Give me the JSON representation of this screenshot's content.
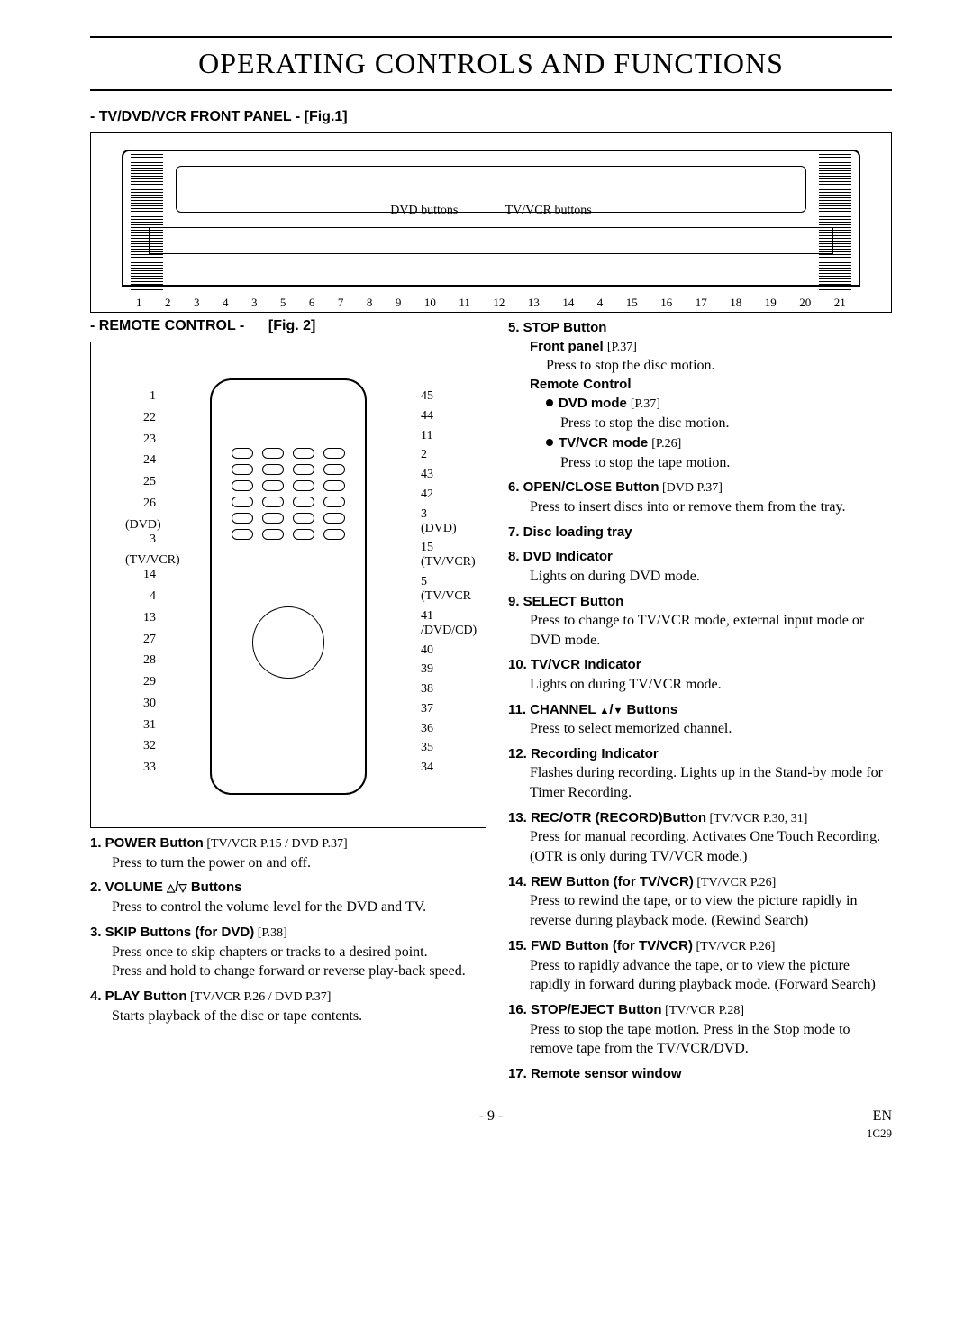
{
  "page_title": "OPERATING CONTROLS AND FUNCTIONS",
  "front_panel": {
    "heading": "- TV/DVD/VCR FRONT PANEL - [Fig.1]",
    "label_dvd": "DVD buttons",
    "label_tvvcr": "TV/VCR buttons",
    "callout_numbers": [
      "1",
      "2",
      "3",
      "4",
      "3",
      "5",
      "6",
      "7",
      "8",
      "9",
      "10",
      "11",
      "12",
      "13",
      "14",
      "4",
      "15",
      "16",
      "17",
      "18",
      "19",
      "20",
      "21"
    ]
  },
  "remote": {
    "heading": "- REMOTE CONTROL -      [Fig. 2]",
    "left_numbers": [
      "1",
      "22",
      "23",
      "24",
      "25",
      "26",
      "(DVD) 3",
      "(TV/VCR) 14",
      "4",
      "13",
      "27",
      "28",
      "29",
      "30",
      "31",
      "32",
      "33"
    ],
    "right_numbers": [
      "45",
      "44",
      "11",
      "2",
      "43",
      "42",
      "3 (DVD)",
      "15 (TV/VCR)",
      "5 (TV/VCR",
      "41 /DVD/CD)",
      "40",
      "39",
      "38",
      "37",
      "36",
      "35",
      "34"
    ]
  },
  "items_left": [
    {
      "num": "1.",
      "title": "POWER Button",
      "ref": "[TV/VCR P.15 / DVD P.37]",
      "lines": [
        "Press to turn the power on and off."
      ]
    },
    {
      "num": "2.",
      "title": "VOLUME ",
      "title_suffix_icons": "otri",
      "title_tail": " Buttons",
      "lines": [
        "Press to control the volume level for the DVD and TV."
      ]
    },
    {
      "num": "3.",
      "title": "SKIP Buttons (for DVD)",
      "ref": "[P.38]",
      "lines": [
        "Press once to skip chapters or tracks to a desired point.",
        "Press and hold to change forward or reverse play-back speed."
      ]
    },
    {
      "num": "4.",
      "title": "PLAY Button",
      "ref": "[TV/VCR P.26 / DVD P.37]",
      "lines": [
        "Starts playback of the disc or tape contents."
      ]
    }
  ],
  "items_right": [
    {
      "num": "5.",
      "title": "STOP Button",
      "subs": [
        {
          "subhead": "Front panel",
          "subref": "[P.37]",
          "sublines": [
            "Press to stop the disc motion."
          ]
        },
        {
          "subhead": "Remote Control",
          "bullets": [
            {
              "mode": "DVD mode",
              "mref": "[P.37]",
              "mtext": "Press to stop the disc motion."
            },
            {
              "mode": "TV/VCR mode",
              "mref": "[P.26]",
              "mtext": "Press to stop the tape motion."
            }
          ]
        }
      ]
    },
    {
      "num": "6.",
      "title": "OPEN/CLOSE Button",
      "ref": "[DVD P.37]",
      "lines": [
        "Press to insert discs into or remove them from the tray."
      ]
    },
    {
      "num": "7.",
      "title": "Disc loading tray"
    },
    {
      "num": "8.",
      "title": "DVD Indicator",
      "lines": [
        "Lights on during DVD mode."
      ]
    },
    {
      "num": "9.",
      "title": "SELECT Button",
      "lines": [
        "Press to change to TV/VCR mode, external input mode or DVD mode."
      ]
    },
    {
      "num": "10.",
      "title": "TV/VCR Indicator",
      "lines": [
        "Lights on during TV/VCR mode."
      ]
    },
    {
      "num": "11.",
      "title": "CHANNEL ",
      "title_suffix_icons": "tri",
      "title_tail": " Buttons",
      "lines": [
        "Press to select memorized channel."
      ]
    },
    {
      "num": "12.",
      "title": "Recording Indicator",
      "lines": [
        "Flashes during recording. Lights up in the Stand-by mode for Timer Recording."
      ]
    },
    {
      "num": "13.",
      "title": "REC/OTR (RECORD)Button",
      "ref": "[TV/VCR P.30, 31]",
      "lines": [
        "Press for manual recording. Activates One Touch Recording.  (OTR is only during TV/VCR mode.)"
      ]
    },
    {
      "num": "14.",
      "title": "REW Button (for TV/VCR)",
      "ref": "[TV/VCR P.26]",
      "lines": [
        "Press to rewind the tape, or to view the picture rapidly in reverse during playback mode. (Rewind Search)"
      ]
    },
    {
      "num": "15.",
      "title": "FWD Button (for TV/VCR)",
      "ref": "[TV/VCR P.26]",
      "lines": [
        "Press to rapidly advance the tape, or to view the picture rapidly in forward during playback mode. (Forward Search)"
      ]
    },
    {
      "num": "16.",
      "title": "STOP/EJECT Button",
      "ref": "[TV/VCR P.28]",
      "lines": [
        "Press to stop the tape motion. Press in the Stop mode to remove tape from the TV/VCR/DVD."
      ]
    },
    {
      "num": "17.",
      "title": "Remote sensor window"
    }
  ],
  "footer": {
    "page_number": "- 9 -",
    "lang": "EN",
    "code": "1C29"
  }
}
